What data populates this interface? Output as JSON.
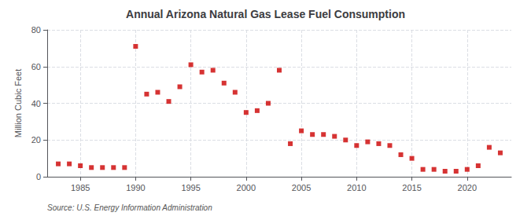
{
  "chart_data": {
    "type": "scatter",
    "title": "Annual Arizona Natural Gas Lease Fuel Consumption",
    "ylabel": "Million Cubic Feet",
    "annotations": [
      "Source: U.S. Energy Information Administration"
    ],
    "x": [
      1983,
      1984,
      1985,
      1986,
      1987,
      1988,
      1989,
      1990,
      1991,
      1992,
      1993,
      1994,
      1995,
      1996,
      1997,
      1998,
      1999,
      2000,
      2001,
      2002,
      2003,
      2004,
      2005,
      2006,
      2007,
      2008,
      2009,
      2010,
      2011,
      2012,
      2013,
      2014,
      2015,
      2016,
      2017,
      2018,
      2019,
      2020,
      2021,
      2022,
      2023
    ],
    "values": [
      7,
      7,
      6,
      5,
      5,
      5,
      5,
      71,
      45,
      46,
      41,
      49,
      61,
      57,
      58,
      51,
      46,
      35,
      36,
      40,
      58,
      18,
      25,
      23,
      23,
      22,
      20,
      17,
      19,
      18,
      17,
      12,
      10,
      4,
      4,
      3,
      3,
      4,
      6,
      16,
      13
    ],
    "color": "#cc0000",
    "marker": "square",
    "xlim": [
      1982,
      2024
    ],
    "xticks": [
      1985,
      1990,
      1995,
      2000,
      2005,
      2010,
      2015,
      2020
    ],
    "ylim": [
      0,
      80
    ],
    "yticks": [
      0,
      20,
      40,
      60,
      80
    ],
    "grid": true
  }
}
